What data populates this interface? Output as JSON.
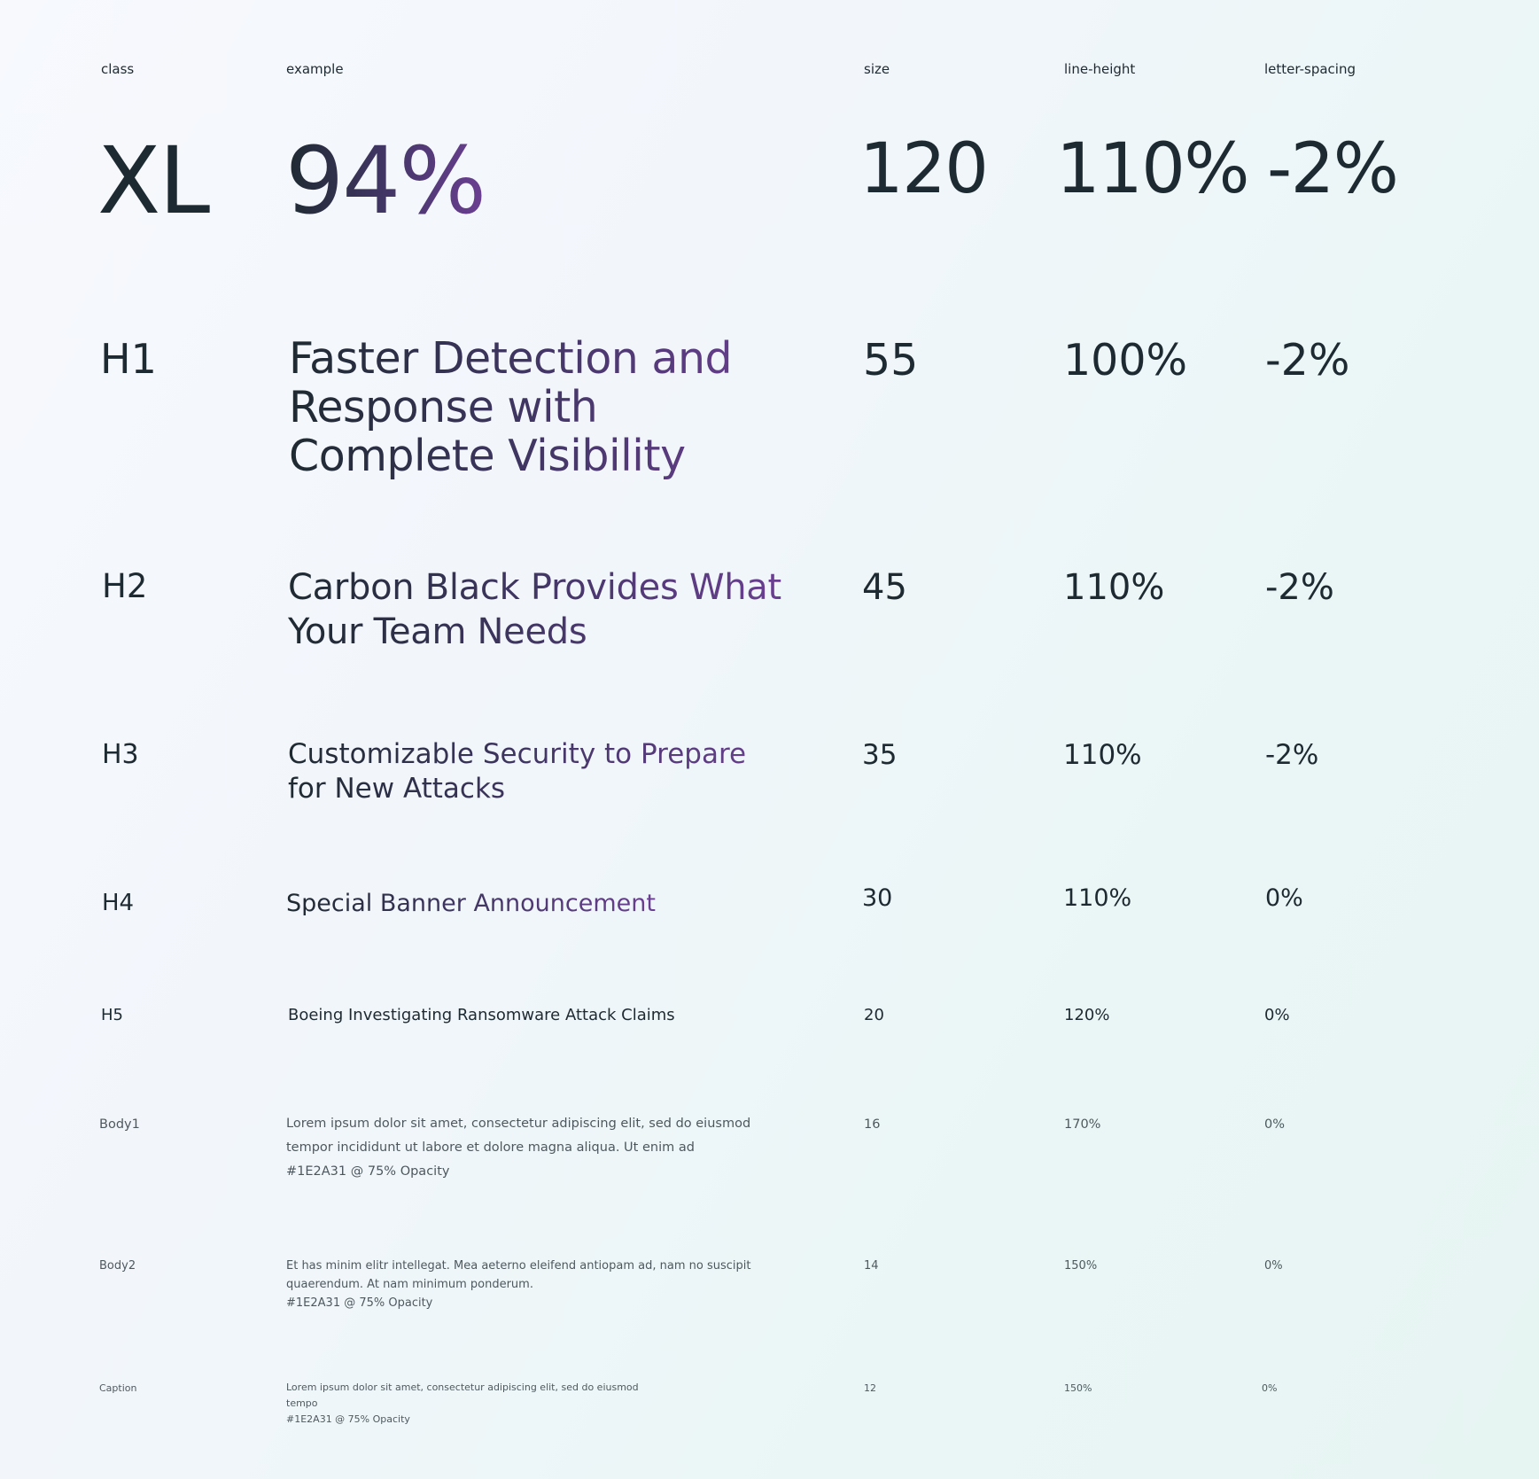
{
  "header": {
    "class": "class",
    "example": "example",
    "size": "size",
    "line_height": "line-height",
    "letter_spacing": "letter-spacing"
  },
  "rows": [
    {
      "class": "XL",
      "example": "94%",
      "size": "120",
      "line_height": "110%",
      "letter_spacing": "-2%"
    },
    {
      "class": "H1",
      "example": "Faster Detection and Response with Complete Visibility",
      "size": "55",
      "line_height": "100%",
      "letter_spacing": "-2%"
    },
    {
      "class": "H2",
      "example": "Carbon Black Provides What Your Team Needs",
      "size": "45",
      "line_height": "110%",
      "letter_spacing": "-2%"
    },
    {
      "class": "H3",
      "example": "Customizable Security to Prepare for New Attacks",
      "size": "35",
      "line_height": "110%",
      "letter_spacing": "-2%"
    },
    {
      "class": "H4",
      "example": "Special Banner Announcement",
      "size": "30",
      "line_height": "110%",
      "letter_spacing": "0%"
    },
    {
      "class": "H5",
      "example": "Boeing Investigating Ransomware Attack Claims",
      "size": "20",
      "line_height": "120%",
      "letter_spacing": "0%"
    },
    {
      "class": "Body1",
      "example": "Lorem ipsum dolor sit amet, consectetur adipiscing elit, sed do eiusmod tempor incididunt ut labore et dolore magna aliqua. Ut enim ad",
      "note": "#1E2A31 @ 75% Opacity",
      "size": "16",
      "line_height": "170%",
      "letter_spacing": "0%"
    },
    {
      "class": "Body2",
      "example": "Et has minim elitr intellegat. Mea aeterno eleifend antiopam ad, nam no suscipit quaerendum. At nam minimum ponderum.",
      "note": "#1E2A31 @ 75% Opacity",
      "size": "14",
      "line_height": "150%",
      "letter_spacing": "0%"
    },
    {
      "class": "Caption",
      "example": "Lorem ipsum dolor sit amet, consectetur adipiscing elit, sed do eiusmod tempo",
      "note": "#1E2A31 @ 75% Opacity",
      "size": "12",
      "line_height": "150%",
      "letter_spacing": "0%"
    }
  ],
  "colors": {
    "text": "#1e2a31",
    "accent": "#6b3f92",
    "background": "#f2f6fb"
  }
}
